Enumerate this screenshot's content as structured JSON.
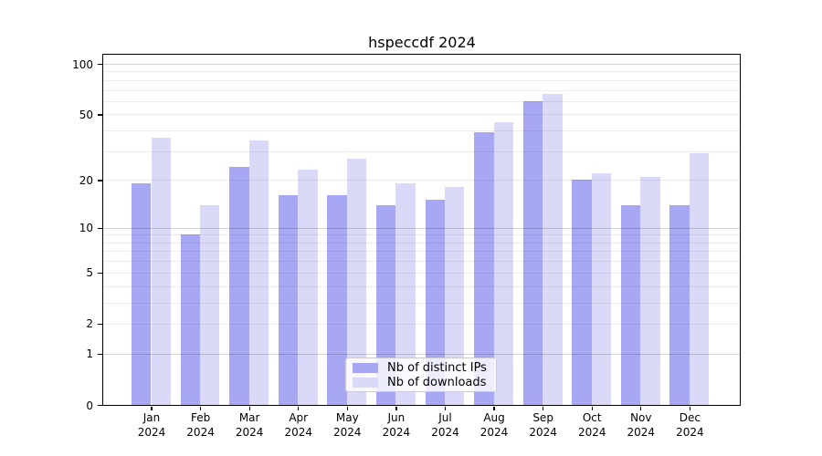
{
  "chart_data": {
    "type": "bar",
    "title": "hspeccdf 2024",
    "categories": [
      "Jan",
      "Feb",
      "Mar",
      "Apr",
      "May",
      "Jun",
      "Jul",
      "Aug",
      "Sep",
      "Oct",
      "Nov",
      "Dec"
    ],
    "x_tick_year": "2024",
    "series": [
      {
        "name": "Nb of distinct IPs",
        "color": "#a7a7f4",
        "values": [
          19,
          9,
          24,
          16,
          16,
          14,
          15,
          39,
          60,
          20,
          14,
          14
        ]
      },
      {
        "name": "Nb of downloads",
        "color": "#dadaf8",
        "values": [
          36,
          14,
          35,
          23,
          27,
          19,
          18,
          45,
          66,
          22,
          21,
          29
        ]
      }
    ],
    "y_scale": "log1p",
    "y_ticks": [
      0,
      1,
      2,
      5,
      10,
      20,
      50,
      100
    ],
    "grid_minor_values": [
      2,
      3,
      4,
      5,
      6,
      7,
      8,
      9,
      20,
      30,
      40,
      50,
      60,
      70,
      80,
      90
    ],
    "grid_major_values": [
      1,
      10,
      100
    ],
    "ylim": [
      0,
      114
    ],
    "grid_on": true,
    "legend_position": "lower center",
    "frame_color": "#000000",
    "background_color": "#ffffff"
  }
}
